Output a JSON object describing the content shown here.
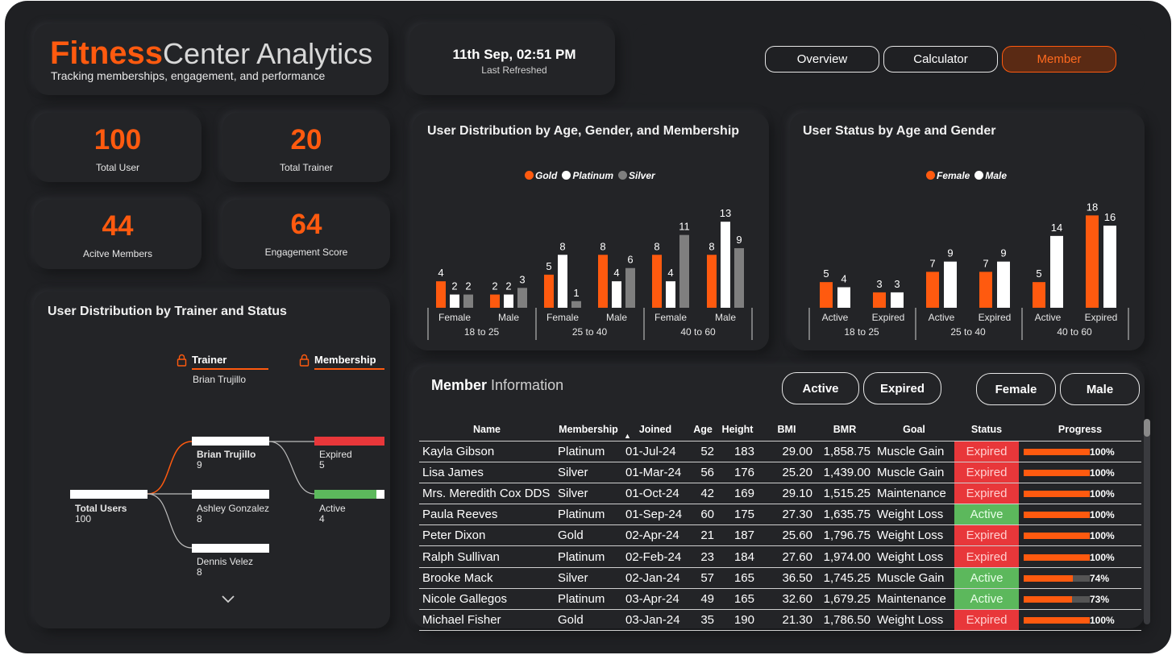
{
  "header": {
    "title_bold": "Fitness",
    "title_rest": "Center Analytics",
    "subtitle": "Tracking memberships, engagement, and performance",
    "datetime": "11th Sep, 02:51 PM",
    "refreshed_label": "Last Refreshed"
  },
  "nav": {
    "overview": "Overview",
    "calculator": "Calculator",
    "member": "Member"
  },
  "kpis": {
    "total_user": {
      "value": "100",
      "label": "Total User"
    },
    "total_trainer": {
      "value": "20",
      "label": "Total Trainer"
    },
    "active_members": {
      "value": "44",
      "label": "Acitve Members"
    },
    "engagement": {
      "value": "64",
      "label": "Engagement Score"
    }
  },
  "tree": {
    "title": "User Distribution by Trainer and Status",
    "trainer_header": "Trainer",
    "trainer_filter": "Brian Trujillo",
    "membership_header": "Membership",
    "root": {
      "label": "Total Users",
      "value": "100"
    },
    "trainers": [
      {
        "label": "Brian Trujillo",
        "value": "9"
      },
      {
        "label": "Ashley Gonzalez",
        "value": "8"
      },
      {
        "label": "Dennis Velez",
        "value": "8"
      }
    ],
    "statuses": [
      {
        "label": "Expired",
        "value": "5"
      },
      {
        "label": "Active",
        "value": "4"
      }
    ],
    "lock_icon": "lock-icon",
    "expand_icon": "chevron-down-icon"
  },
  "colors": {
    "accent": "#ff5a0f",
    "platinum": "#ffffff",
    "silver": "#7f7f7f",
    "expired": "#e8373a",
    "active": "#5cb85c"
  },
  "chart_data": [
    {
      "type": "bar",
      "title": "User Distribution by Age, Gender, and Membership",
      "legend_position": "top-center",
      "legend": [
        "Gold",
        "Platinum",
        "Silver"
      ],
      "groups": [
        {
          "label": "18 to 25",
          "categories": [
            "Female",
            "Male"
          ]
        },
        {
          "label": "25 to 40",
          "categories": [
            "Female",
            "Male"
          ]
        },
        {
          "label": "40 to 60",
          "categories": [
            "Female",
            "Male"
          ]
        }
      ],
      "categories": [
        "Female",
        "Male",
        "Female",
        "Male",
        "Female",
        "Male"
      ],
      "series": [
        {
          "name": "Gold",
          "values": [
            4,
            2,
            5,
            8,
            8,
            8
          ]
        },
        {
          "name": "Platinum",
          "values": [
            2,
            2,
            8,
            4,
            4,
            13
          ]
        },
        {
          "name": "Silver",
          "values": [
            2,
            3,
            1,
            6,
            11,
            9
          ]
        }
      ],
      "ylim": [
        0,
        14
      ]
    },
    {
      "type": "bar",
      "title": "User Status by Age and Gender",
      "legend_position": "top-center",
      "legend": [
        "Female",
        "Male"
      ],
      "groups": [
        {
          "label": "18 to 25",
          "categories": [
            "Active",
            "Expired"
          ]
        },
        {
          "label": "25 to 40",
          "categories": [
            "Active",
            "Expired"
          ]
        },
        {
          "label": "40 to 60",
          "categories": [
            "Active",
            "Expired"
          ]
        }
      ],
      "categories": [
        "Active",
        "Expired",
        "Active",
        "Expired",
        "Active",
        "Expired"
      ],
      "series": [
        {
          "name": "Female",
          "values": [
            5,
            3,
            7,
            7,
            5,
            18
          ]
        },
        {
          "name": "Male",
          "values": [
            4,
            3,
            9,
            9,
            14,
            16
          ]
        }
      ],
      "ylim": [
        0,
        19
      ]
    }
  ],
  "members": {
    "title_bold": "Member",
    "title_rest": "Information",
    "filters": [
      "Active",
      "Expired",
      "Female",
      "Male"
    ],
    "columns": [
      "Name",
      "Membership",
      "Joined",
      "Age",
      "Height",
      "BMI",
      "BMR",
      "Goal",
      "Status",
      "Progress"
    ],
    "rows": [
      {
        "name": "Kayla Gibson",
        "membership": "Platinum",
        "joined": "01-Jul-24",
        "age": "52",
        "height": "183",
        "bmi": "29.00",
        "bmr": "1,858.75",
        "goal": "Muscle Gain",
        "status": "Expired",
        "progress": 1.0,
        "progress_label": "100%"
      },
      {
        "name": "Lisa James",
        "membership": "Silver",
        "joined": "01-Mar-24",
        "age": "56",
        "height": "176",
        "bmi": "25.20",
        "bmr": "1,439.00",
        "goal": "Muscle Gain",
        "status": "Expired",
        "progress": 1.0,
        "progress_label": "100%"
      },
      {
        "name": "Mrs. Meredith Cox DDS",
        "membership": "Silver",
        "joined": "01-Oct-24",
        "age": "42",
        "height": "169",
        "bmi": "29.10",
        "bmr": "1,515.25",
        "goal": "Maintenance",
        "status": "Expired",
        "progress": 1.0,
        "progress_label": "100%"
      },
      {
        "name": "Paula Reeves",
        "membership": "Platinum",
        "joined": "01-Sep-24",
        "age": "60",
        "height": "175",
        "bmi": "27.30",
        "bmr": "1,635.75",
        "goal": "Weight Loss",
        "status": "Active",
        "progress": 1.0,
        "progress_label": "100%"
      },
      {
        "name": "Peter Dixon",
        "membership": "Gold",
        "joined": "02-Apr-24",
        "age": "21",
        "height": "187",
        "bmi": "25.60",
        "bmr": "1,796.75",
        "goal": "Weight Loss",
        "status": "Expired",
        "progress": 1.0,
        "progress_label": "100%"
      },
      {
        "name": "Ralph Sullivan",
        "membership": "Platinum",
        "joined": "02-Feb-24",
        "age": "23",
        "height": "184",
        "bmi": "27.60",
        "bmr": "1,974.00",
        "goal": "Weight Loss",
        "status": "Expired",
        "progress": 1.0,
        "progress_label": "100%"
      },
      {
        "name": "Brooke Mack",
        "membership": "Silver",
        "joined": "02-Jan-24",
        "age": "57",
        "height": "165",
        "bmi": "36.50",
        "bmr": "1,745.25",
        "goal": "Muscle Gain",
        "status": "Active",
        "progress": 0.74,
        "progress_label": "74%"
      },
      {
        "name": "Nicole Gallegos",
        "membership": "Platinum",
        "joined": "03-Apr-24",
        "age": "49",
        "height": "165",
        "bmi": "32.60",
        "bmr": "1,679.25",
        "goal": "Maintenance",
        "status": "Active",
        "progress": 0.73,
        "progress_label": "73%"
      },
      {
        "name": "Michael Fisher",
        "membership": "Gold",
        "joined": "03-Jan-24",
        "age": "35",
        "height": "190",
        "bmi": "21.30",
        "bmr": "1,786.50",
        "goal": "Weight Loss",
        "status": "Expired",
        "progress": 1.0,
        "progress_label": "100%"
      }
    ]
  }
}
